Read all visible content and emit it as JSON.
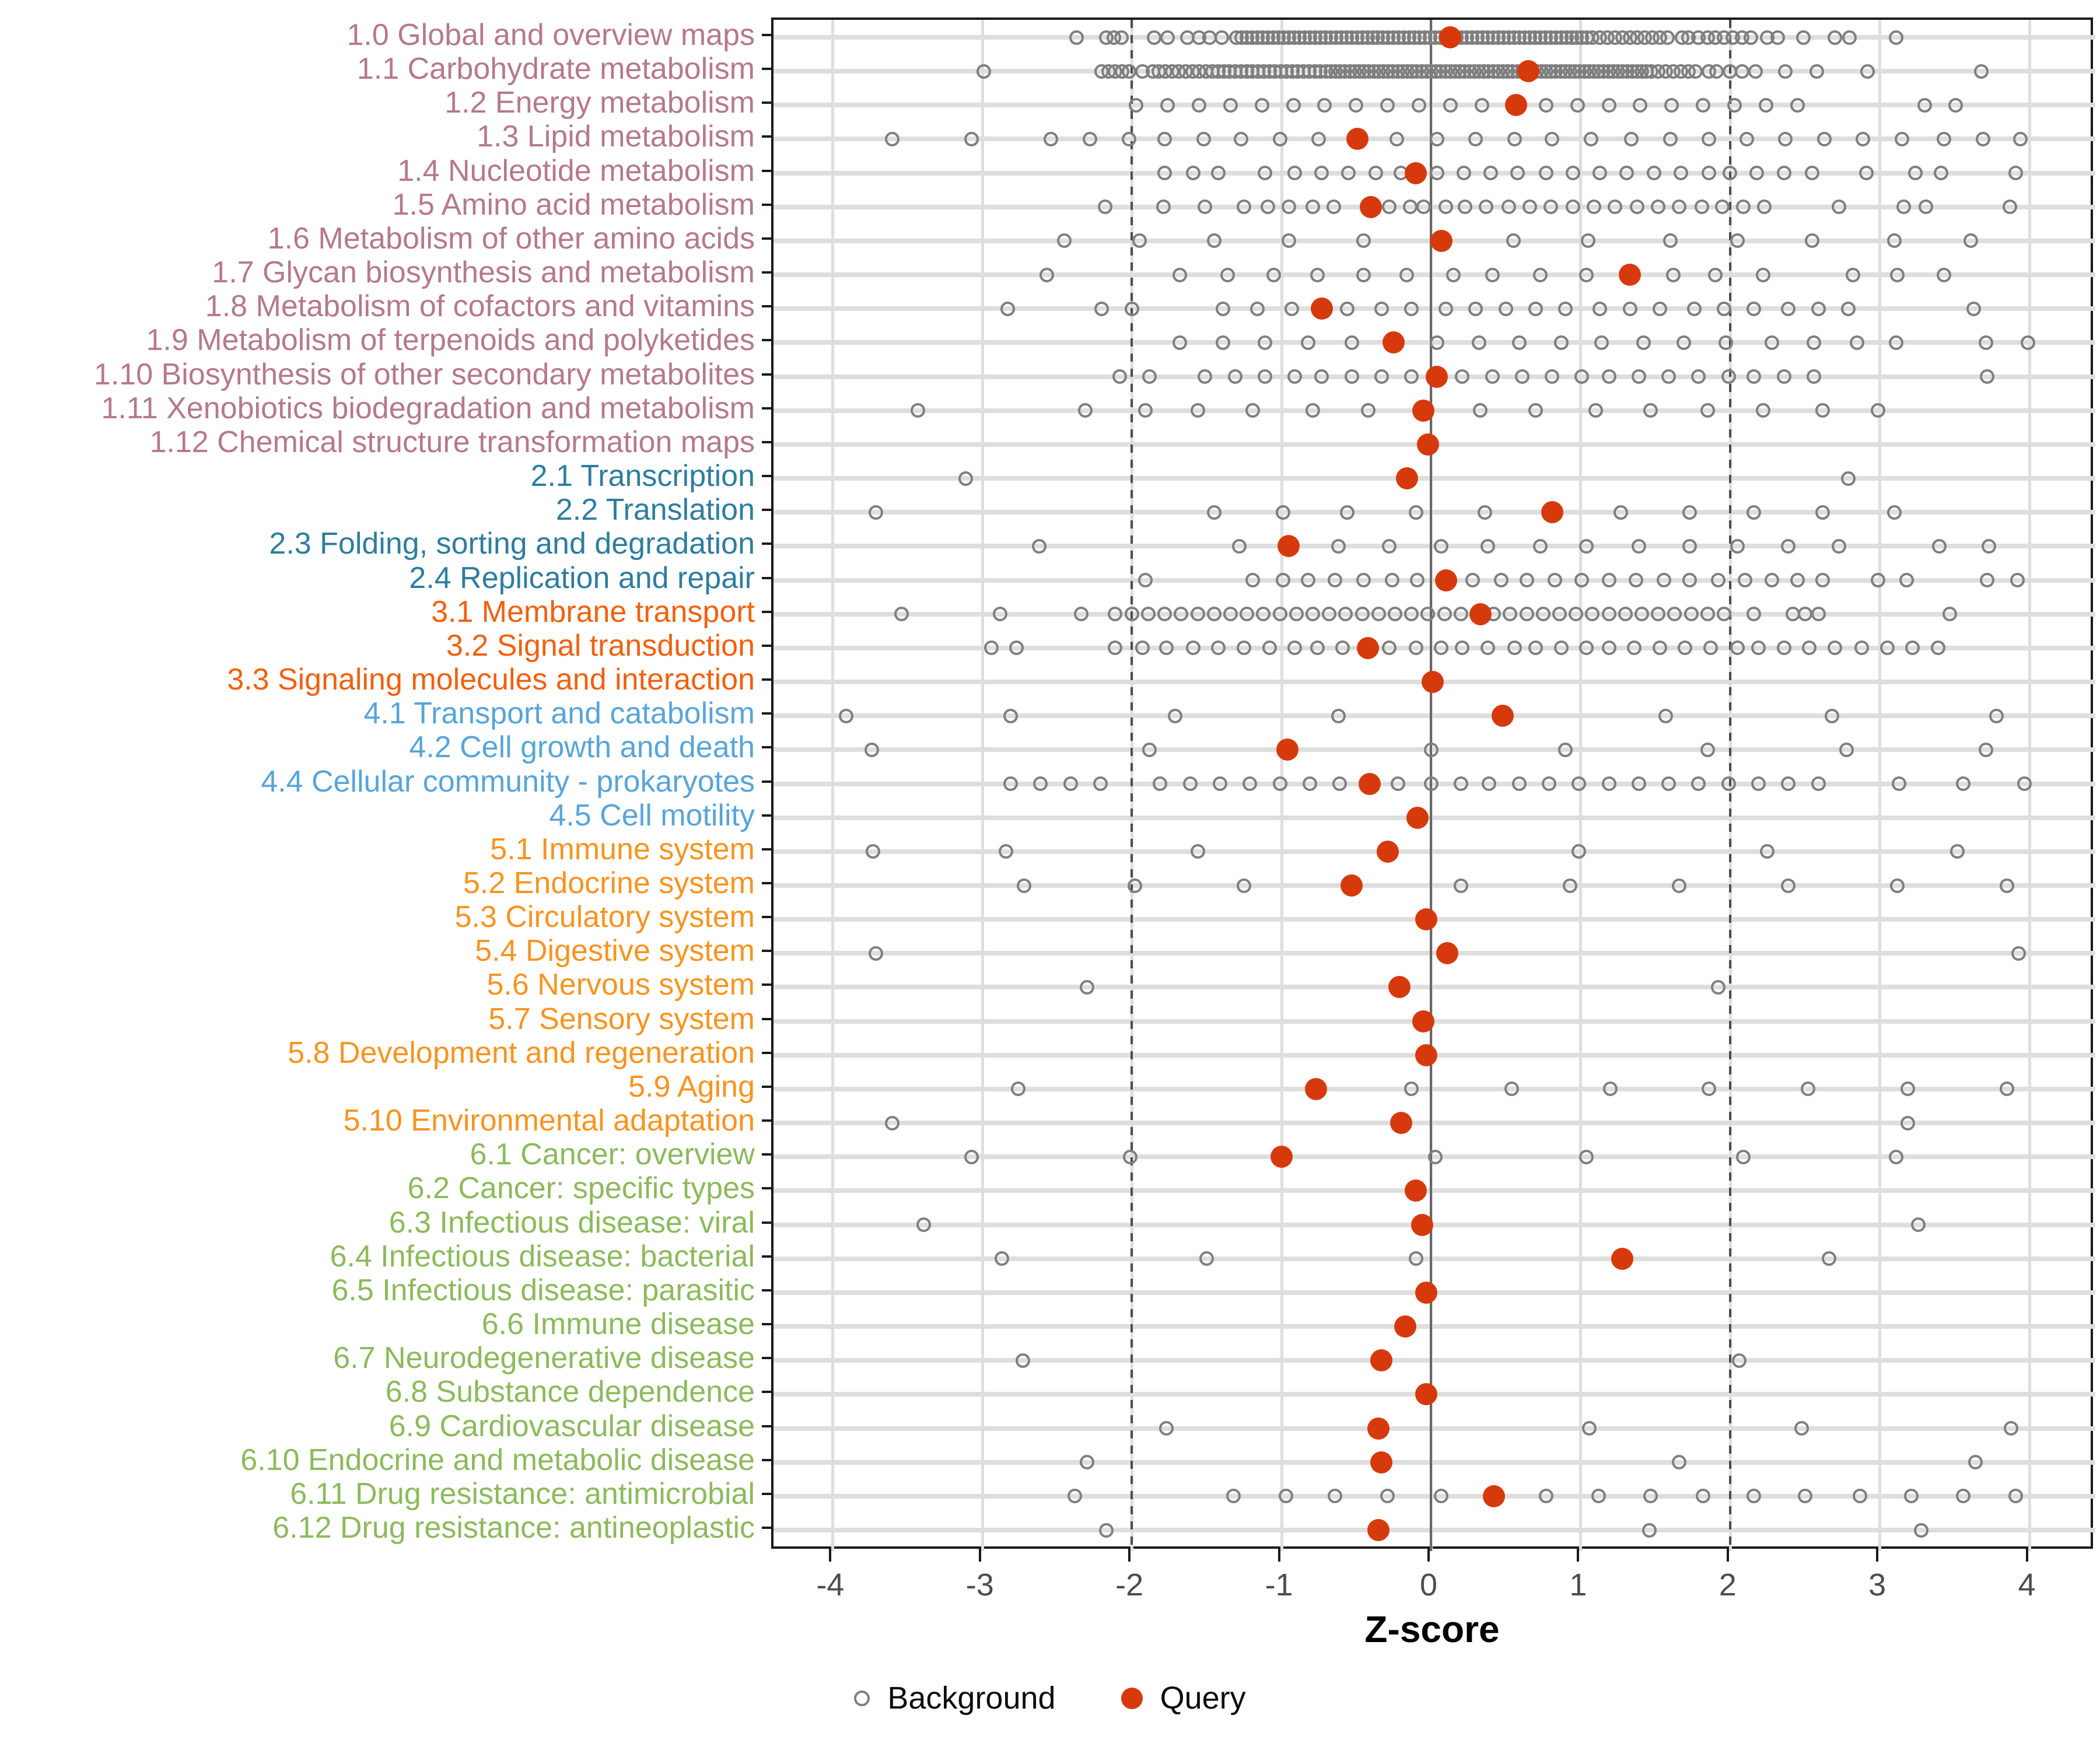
{
  "chart_data": {
    "type": "scatter",
    "title": "",
    "xlabel": "Z-score",
    "x_ticks": [
      -4,
      -3,
      -2,
      -1,
      0,
      1,
      2,
      3,
      4
    ],
    "xlim": [
      -4.4,
      4.44
    ],
    "grid": "light-gray vertical at integers, thick light-gray horizontal stripe per row",
    "reference_lines": {
      "solid_at": 0,
      "dashed_at": [
        -2,
        2
      ]
    },
    "legend_position": "bottom-center",
    "legend": [
      {
        "label": "Background",
        "marker": "open-circle",
        "color": "#7f7f7f"
      },
      {
        "label": "Query",
        "marker": "filled-circle",
        "color": "#d63a0c"
      }
    ],
    "colors": {
      "query_dot": "#d63a0c",
      "background_stroke": "#7f7f7f",
      "stripe": "#dedede",
      "vgrid": "#dedede",
      "zero_line": "#666666",
      "dashed_line": "#4d4d4d",
      "axis_text": "#4d4d4d",
      "panel_border": "#1a1a1a"
    },
    "group_colors": {
      "1": "#b5798c",
      "2": "#2e7d9e",
      "3": "#f2600d",
      "4": "#58a5d8",
      "5": "#f79420",
      "6": "#8cba5c"
    },
    "rows": [
      {
        "label": "1.0 Global and overview maps",
        "group": "1",
        "query": 0.13,
        "background": [
          -2.37,
          -2.17,
          -2.12,
          -2.07,
          -1.85,
          -1.76,
          -1.63,
          -1.55,
          -1.48,
          -1.4,
          1.68,
          1.72,
          1.79,
          1.85,
          2.25,
          2.32,
          2.49,
          2.7,
          2.8,
          3.11
        ],
        "background_bands": [
          {
            "from": -1.3,
            "to": 1.05,
            "step": 0.035
          },
          {
            "from": 1.08,
            "to": 1.6,
            "step": 0.05
          },
          {
            "from": 1.9,
            "to": 2.14,
            "step": 0.06
          }
        ]
      },
      {
        "label": "1.1 Carbohydrate metabolism",
        "group": "1",
        "query": 0.65,
        "background": [
          -2.99,
          -1.93,
          -1.86,
          1.86,
          1.91,
          2.0,
          2.08,
          2.17,
          2.37,
          2.58,
          2.92,
          3.68
        ],
        "background_bands": [
          {
            "from": -2.2,
            "to": -1.98,
            "step": 0.045
          },
          {
            "from": -1.82,
            "to": -1.5,
            "step": 0.045
          },
          {
            "from": -1.46,
            "to": -0.7,
            "step": 0.038
          },
          {
            "from": -0.67,
            "to": 1.48,
            "step": 0.032
          },
          {
            "from": 1.52,
            "to": 1.78,
            "step": 0.05
          }
        ]
      },
      {
        "label": "1.2 Energy metabolism",
        "group": "1",
        "query": 0.57,
        "background": [
          -1.97,
          -1.76,
          -1.55,
          -1.34,
          -1.13,
          -0.92,
          -0.71,
          -0.5,
          -0.29,
          -0.08,
          0.13,
          0.34,
          0.77,
          0.98,
          1.19,
          1.4,
          1.61,
          1.82,
          2.03,
          2.24,
          2.45,
          3.3,
          3.51
        ],
        "background_bands": []
      },
      {
        "label": "1.3 Lipid metabolism",
        "group": "1",
        "query": -0.49,
        "background": [
          -3.6,
          -3.07,
          -2.54,
          -2.28,
          -2.02,
          -1.78,
          -1.52,
          -1.27,
          -1.01,
          -0.75,
          -0.23,
          0.04,
          0.3,
          0.56,
          0.81,
          1.07,
          1.34,
          1.6,
          1.86,
          2.11,
          2.37,
          2.63,
          2.89,
          3.15,
          3.43,
          3.69,
          3.94
        ],
        "background_bands": []
      },
      {
        "label": "1.4 Nucleotide metabolism",
        "group": "1",
        "query": -0.1,
        "background": [
          -1.78,
          -1.59,
          -1.42,
          -1.11,
          -0.91,
          -0.73,
          -0.55,
          -0.37,
          -0.2,
          0.04,
          0.22,
          0.4,
          0.58,
          0.77,
          0.95,
          1.13,
          1.31,
          1.49,
          1.67,
          1.86,
          2.0,
          2.18,
          2.36,
          2.55,
          2.91,
          3.24,
          3.41,
          3.91
        ],
        "background_bands": []
      },
      {
        "label": "1.5 Amino acid metabolism",
        "group": "1",
        "query": -0.4,
        "background": [
          -2.18,
          -1.79,
          -1.51,
          -1.25,
          -1.09,
          -0.95,
          -0.79,
          -0.65,
          -0.28,
          -0.14,
          -0.05,
          0.1,
          0.23,
          0.37,
          0.52,
          0.66,
          0.8,
          0.95,
          1.09,
          1.23,
          1.38,
          1.52,
          1.66,
          1.81,
          1.95,
          2.09,
          2.23,
          2.73,
          3.16,
          3.31,
          3.87
        ],
        "background_bands": []
      },
      {
        "label": "1.6 Metabolism of other amino acids",
        "group": "1",
        "query": 0.07,
        "background": [
          -2.45,
          -1.95,
          -1.45,
          -0.95,
          -0.45,
          0.55,
          1.05,
          1.6,
          2.05,
          2.55,
          3.1,
          3.61
        ],
        "background_bands": []
      },
      {
        "label": "1.7 Glycan biosynthesis and metabolism",
        "group": "1",
        "query": 1.33,
        "background": [
          -2.57,
          -1.68,
          -1.36,
          -1.05,
          -0.76,
          -0.45,
          -0.16,
          0.15,
          0.41,
          0.73,
          1.04,
          1.62,
          1.9,
          2.22,
          2.82,
          3.12,
          3.43
        ],
        "background_bands": []
      },
      {
        "label": "1.8 Metabolism of cofactors and vitamins",
        "group": "1",
        "query": -0.73,
        "background": [
          -2.83,
          -2.2,
          -2.0,
          -1.39,
          -1.16,
          -0.93,
          -0.56,
          -0.33,
          -0.13,
          0.1,
          0.3,
          0.5,
          0.7,
          0.9,
          1.13,
          1.33,
          1.53,
          1.76,
          1.96,
          2.16,
          2.39,
          2.59,
          2.79,
          3.63
        ],
        "background_bands": []
      },
      {
        "label": "1.9 Metabolism of terpenoids and polyketides",
        "group": "1",
        "query": -0.25,
        "background": [
          -1.68,
          -1.39,
          -1.11,
          -0.82,
          -0.53,
          0.04,
          0.32,
          0.59,
          0.87,
          1.14,
          1.42,
          1.69,
          1.97,
          2.28,
          2.56,
          2.85,
          3.11,
          3.71,
          3.99
        ],
        "background_bands": []
      },
      {
        "label": "1.10 Biosynthesis of other secondary metabolites",
        "group": "1",
        "query": 0.04,
        "background": [
          -2.08,
          -1.88,
          -1.51,
          -1.31,
          -1.11,
          -0.91,
          -0.73,
          -0.53,
          -0.33,
          -0.13,
          0.21,
          0.41,
          0.61,
          0.81,
          1.01,
          1.19,
          1.39,
          1.59,
          1.79,
          1.99,
          2.16,
          2.36,
          2.56,
          3.72
        ],
        "background_bands": []
      },
      {
        "label": "1.11 Xenobiotics biodegradation and metabolism",
        "group": "1",
        "query": -0.05,
        "background": [
          -3.43,
          -2.31,
          -1.91,
          -1.56,
          -1.19,
          -0.79,
          -0.42,
          0.33,
          0.7,
          1.1,
          1.47,
          1.85,
          2.22,
          2.62,
          2.99
        ],
        "background_bands": []
      },
      {
        "label": "1.12 Chemical structure transformation maps",
        "group": "1",
        "query": -0.02,
        "background": [],
        "background_bands": []
      },
      {
        "label": "2.1 Transcription",
        "group": "2",
        "query": -0.16,
        "background": [
          -3.11,
          2.79
        ],
        "background_bands": []
      },
      {
        "label": "2.2 Translation",
        "group": "2",
        "query": 0.81,
        "background": [
          -3.71,
          -1.45,
          -0.99,
          -0.56,
          -0.1,
          0.36,
          1.27,
          1.73,
          2.16,
          2.62,
          3.1
        ],
        "background_bands": []
      },
      {
        "label": "2.3 Folding, sorting and degradation",
        "group": "2",
        "query": -0.95,
        "background": [
          -2.62,
          -1.28,
          -0.62,
          -0.28,
          0.07,
          0.38,
          0.73,
          1.04,
          1.39,
          1.73,
          2.05,
          2.39,
          2.73,
          3.4,
          3.73
        ],
        "background_bands": []
      },
      {
        "label": "2.4 Replication and repair",
        "group": "2",
        "query": 0.1,
        "background": [
          -1.91,
          -1.19,
          -0.99,
          -0.82,
          -0.64,
          -0.45,
          -0.26,
          -0.09,
          0.28,
          0.47,
          0.64,
          0.83,
          1.01,
          1.19,
          1.37,
          1.56,
          1.73,
          1.92,
          2.1,
          2.28,
          2.45,
          2.62,
          2.99,
          3.18,
          3.72,
          3.92
        ],
        "background_bands": []
      },
      {
        "label": "3.1 Membrane transport",
        "group": "3",
        "query": 0.33,
        "background": [
          -3.54,
          -2.88,
          -2.34,
          2.16,
          2.42,
          2.5,
          2.59,
          3.47
        ],
        "background_bands": [
          {
            "from": -2.11,
            "to": 2.02,
            "step": 0.11
          }
        ]
      },
      {
        "label": "3.2 Signal transduction",
        "group": "3",
        "query": -0.42,
        "background": [
          -2.94,
          -2.77,
          -2.11,
          -1.93,
          -1.77,
          -1.59,
          -1.42,
          -1.25,
          -1.08,
          -0.91,
          -0.76,
          -0.59,
          -0.28,
          -0.1,
          0.07,
          0.21,
          0.38,
          0.56,
          0.7,
          0.87,
          1.04,
          1.19,
          1.36,
          1.53,
          1.7,
          1.87,
          2.05,
          2.19,
          2.36,
          2.53,
          2.7,
          2.88,
          3.05,
          3.22,
          3.39
        ],
        "background_bands": []
      },
      {
        "label": "3.3 Signaling molecules and interaction",
        "group": "3",
        "query": 0.01,
        "background": [],
        "background_bands": []
      },
      {
        "label": "4.1 Transport and catabolism",
        "group": "4",
        "query": 0.48,
        "background": [
          -3.91,
          -2.81,
          -1.71,
          -0.62,
          1.57,
          2.68,
          3.78
        ],
        "background_bands": []
      },
      {
        "label": "4.2 Cell growth and death",
        "group": "4",
        "query": -0.96,
        "background": [
          -3.74,
          -1.88,
          0.0,
          0.9,
          1.85,
          2.78,
          3.71
        ],
        "background_bands": []
      },
      {
        "label": "4.4 Cellular community - prokaryotes",
        "group": "4",
        "query": -0.41,
        "background": [
          -2.81,
          -2.61,
          -2.41,
          -2.21,
          -1.81,
          -1.61,
          -1.41,
          -1.21,
          -1.01,
          -0.81,
          -0.61,
          -0.22,
          0.0,
          0.2,
          0.39,
          0.59,
          0.79,
          0.99,
          1.19,
          1.39,
          1.59,
          1.79,
          1.99,
          2.19,
          2.39,
          2.59,
          3.13,
          3.56,
          3.97
        ],
        "background_bands": []
      },
      {
        "label": "4.5 Cell motility",
        "group": "4",
        "query": -0.09,
        "background": [],
        "background_bands": []
      },
      {
        "label": "5.1 Immune system",
        "group": "5",
        "query": -0.29,
        "background": [
          -3.73,
          -2.84,
          -1.56,
          0.99,
          2.25,
          3.52
        ],
        "background_bands": []
      },
      {
        "label": "5.2 Endocrine system",
        "group": "5",
        "query": -0.53,
        "background": [
          -2.72,
          -1.98,
          -1.25,
          0.2,
          0.93,
          1.66,
          2.39,
          3.12,
          3.85
        ],
        "background_bands": []
      },
      {
        "label": "5.3 Circulatory system",
        "group": "5",
        "query": -0.03,
        "background": [],
        "background_bands": []
      },
      {
        "label": "5.4 Digestive system",
        "group": "5",
        "query": 0.11,
        "background": [
          -3.71,
          3.93
        ],
        "background_bands": []
      },
      {
        "label": "5.6 Nervous system",
        "group": "5",
        "query": -0.21,
        "background": [
          -2.3,
          1.92
        ],
        "background_bands": []
      },
      {
        "label": "5.7 Sensory system",
        "group": "5",
        "query": -0.05,
        "background": [],
        "background_bands": []
      },
      {
        "label": "5.8 Development and regeneration",
        "group": "5",
        "query": -0.03,
        "background": [],
        "background_bands": []
      },
      {
        "label": "5.9 Aging",
        "group": "5",
        "query": -0.77,
        "background": [
          -2.76,
          -0.13,
          0.54,
          1.2,
          1.86,
          2.52,
          3.19,
          3.85
        ],
        "background_bands": []
      },
      {
        "label": "5.10 Environmental adaptation",
        "group": "5",
        "query": -0.2,
        "background": [
          -3.6,
          3.19
        ],
        "background_bands": []
      },
      {
        "label": "6.1 Cancer: overview",
        "group": "6",
        "query": -1.0,
        "background": [
          -3.07,
          -2.01,
          0.03,
          1.04,
          2.09,
          3.11
        ],
        "background_bands": []
      },
      {
        "label": "6.2 Cancer: specific types",
        "group": "6",
        "query": -0.1,
        "background": [],
        "background_bands": []
      },
      {
        "label": "6.3 Infectious disease: viral",
        "group": "6",
        "query": -0.06,
        "background": [
          -3.39,
          3.26
        ],
        "background_bands": []
      },
      {
        "label": "6.4 Infectious disease: bacterial",
        "group": "6",
        "query": 1.28,
        "background": [
          -2.87,
          -1.5,
          -0.1,
          2.66
        ],
        "background_bands": []
      },
      {
        "label": "6.5 Infectious disease: parasitic",
        "group": "6",
        "query": -0.03,
        "background": [],
        "background_bands": []
      },
      {
        "label": "6.6 Immune disease",
        "group": "6",
        "query": -0.17,
        "background": [],
        "background_bands": []
      },
      {
        "label": "6.7 Neurodegenerative disease",
        "group": "6",
        "query": -0.33,
        "background": [
          -2.73,
          2.06
        ],
        "background_bands": []
      },
      {
        "label": "6.8 Substance dependence",
        "group": "6",
        "query": -0.03,
        "background": [],
        "background_bands": []
      },
      {
        "label": "6.9 Cardiovascular disease",
        "group": "6",
        "query": -0.35,
        "background": [
          -1.77,
          1.06,
          2.48,
          3.88
        ],
        "background_bands": []
      },
      {
        "label": "6.10 Endocrine and metabolic disease",
        "group": "6",
        "query": -0.33,
        "background": [
          -2.3,
          1.66,
          3.64
        ],
        "background_bands": []
      },
      {
        "label": "6.11 Drug resistance: antimicrobial",
        "group": "6",
        "query": 0.42,
        "background": [
          -2.38,
          -1.32,
          -0.97,
          -0.64,
          -0.29,
          0.07,
          0.77,
          1.12,
          1.47,
          1.82,
          2.16,
          2.5,
          2.87,
          3.21,
          3.56,
          3.91
        ],
        "background_bands": []
      },
      {
        "label": "6.12 Drug resistance: antineoplastic",
        "group": "6",
        "query": -0.35,
        "background": [
          -2.17,
          1.46,
          3.28
        ],
        "background_bands": []
      }
    ]
  }
}
